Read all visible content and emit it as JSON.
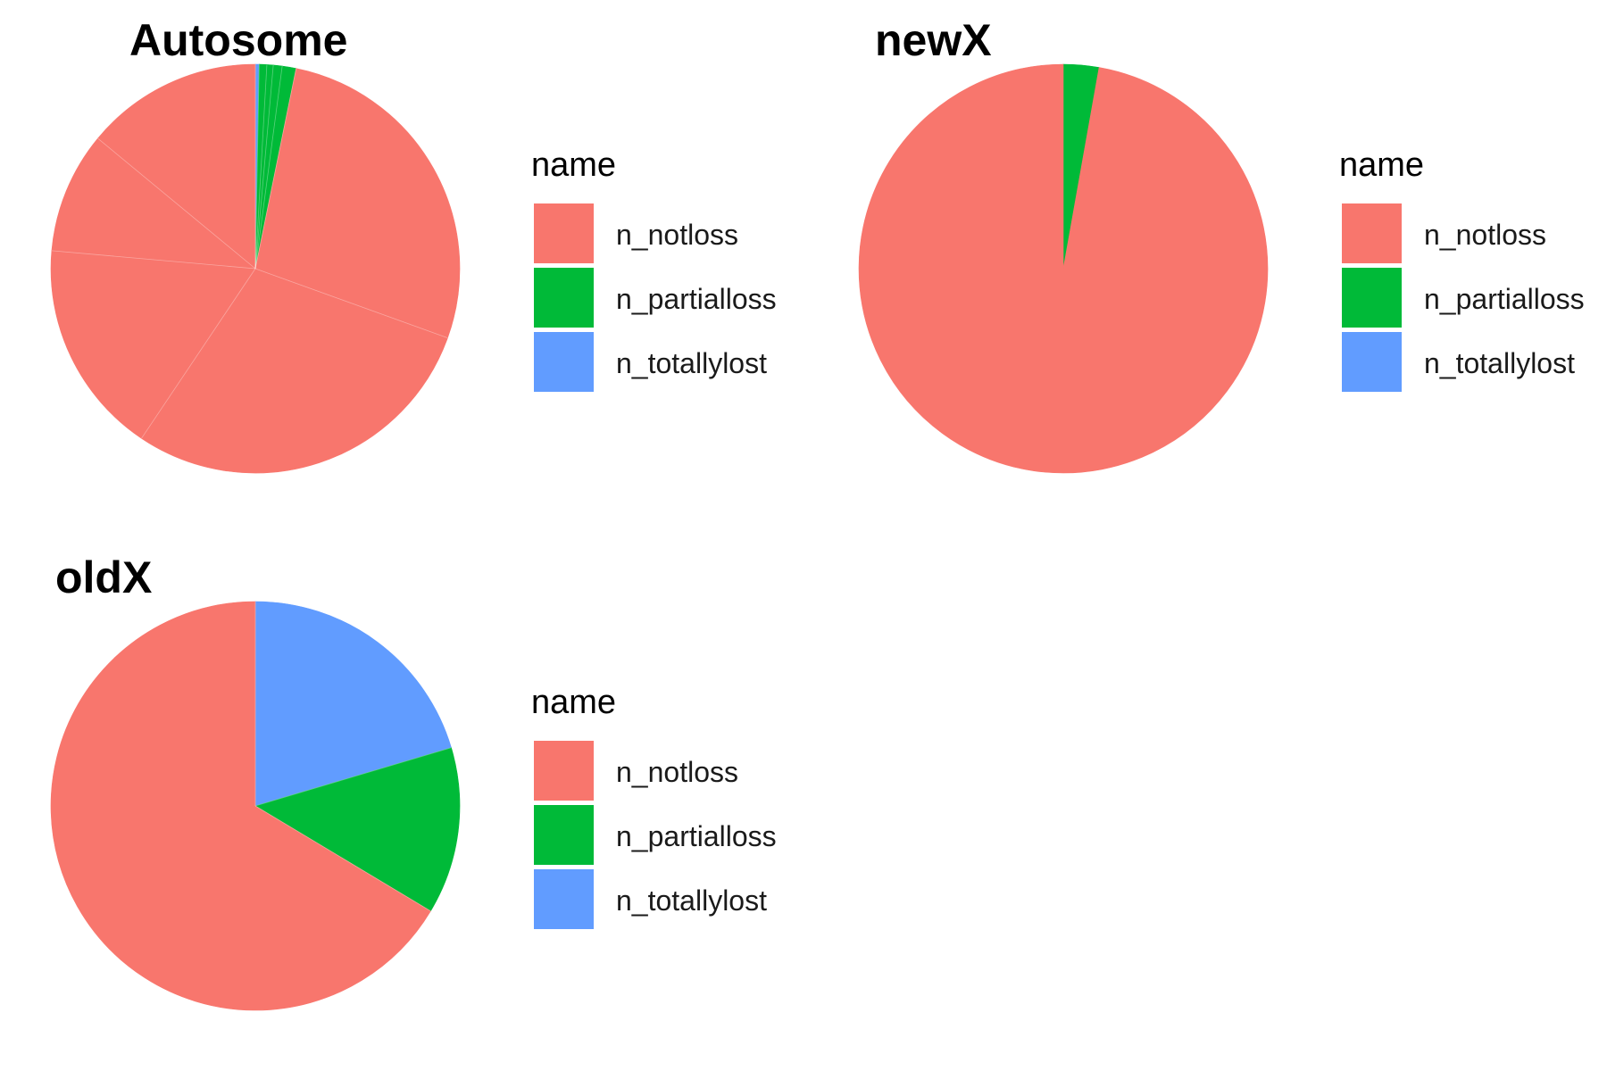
{
  "chart_data": [
    {
      "type": "pie",
      "title": "Autosome",
      "legend_title": "name",
      "legend_position": "right",
      "categories": [
        "n_notloss",
        "n_partialloss",
        "n_totallylost"
      ],
      "colors": [
        "#F8766D",
        "#00BA38",
        "#619CFF"
      ],
      "slices": [
        {
          "name": "n_totallylost",
          "value": 0.3
        },
        {
          "name": "n_partialloss",
          "value": 0.6
        },
        {
          "name": "n_partialloss",
          "value": 0.5
        },
        {
          "name": "n_partialloss",
          "value": 0.7
        },
        {
          "name": "n_partialloss",
          "value": 1.1
        },
        {
          "name": "n_notloss",
          "value": 27.3
        },
        {
          "name": "n_notloss",
          "value": 28.9
        },
        {
          "name": "n_notloss",
          "value": 17.0
        },
        {
          "name": "n_notloss",
          "value": 9.6
        },
        {
          "name": "n_notloss",
          "value": 14.0
        }
      ]
    },
    {
      "type": "pie",
      "title": "newX",
      "legend_title": "name",
      "legend_position": "right",
      "categories": [
        "n_notloss",
        "n_partialloss",
        "n_totallylost"
      ],
      "colors": [
        "#F8766D",
        "#00BA38",
        "#619CFF"
      ],
      "slices": [
        {
          "name": "n_partialloss",
          "value": 2.8
        },
        {
          "name": "n_notloss",
          "value": 97.2
        }
      ]
    },
    {
      "type": "pie",
      "title": "oldX",
      "legend_title": "name",
      "legend_position": "right",
      "categories": [
        "n_notloss",
        "n_partialloss",
        "n_totallylost"
      ],
      "colors": [
        "#F8766D",
        "#00BA38",
        "#619CFF"
      ],
      "slices": [
        {
          "name": "n_totallylost",
          "value": 20.4
        },
        {
          "name": "n_partialloss",
          "value": 13.2
        },
        {
          "name": "n_notloss",
          "value": 66.4
        }
      ]
    }
  ]
}
